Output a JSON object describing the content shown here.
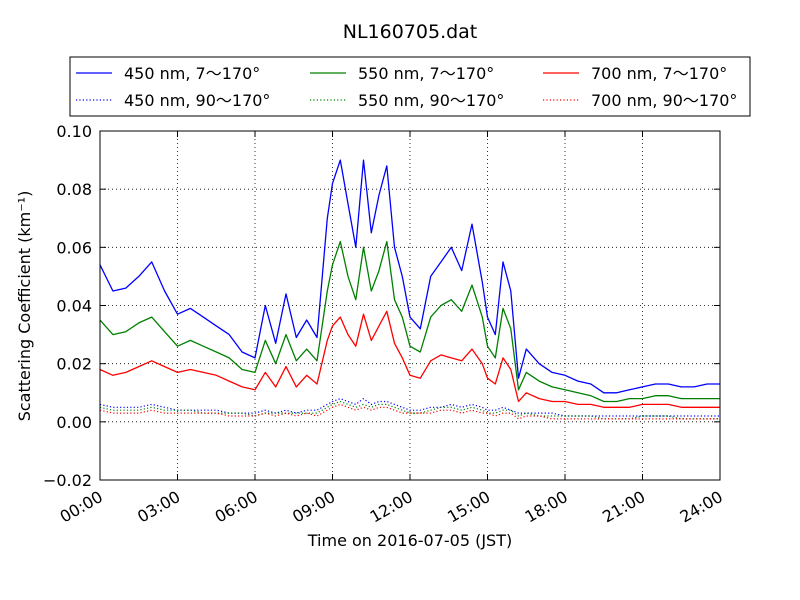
{
  "chart_data": {
    "type": "line",
    "title": "NL160705.dat",
    "xlabel": "Time on 2016-07-05 (JST)",
    "ylabel": "Scattering Coefficient (km⁻¹)",
    "x_unit": "hour",
    "xlim": [
      0,
      24
    ],
    "ylim": [
      -0.02,
      0.1
    ],
    "xticks": [
      0,
      3,
      6,
      9,
      12,
      15,
      18,
      21,
      24
    ],
    "xtick_labels": [
      "00:00",
      "03:00",
      "06:00",
      "09:00",
      "12:00",
      "15:00",
      "18:00",
      "21:00",
      "24:00"
    ],
    "yticks": [
      -0.02,
      0.0,
      0.02,
      0.04,
      0.06,
      0.08,
      0.1
    ],
    "ytick_labels": [
      "−0.02",
      "0.00",
      "0.02",
      "0.04",
      "0.06",
      "0.08",
      "0.10"
    ],
    "grid": true,
    "legend_position": "top, above plot",
    "x": [
      0.0,
      0.5,
      1.0,
      1.5,
      2.0,
      2.5,
      3.0,
      3.5,
      4.0,
      4.5,
      5.0,
      5.5,
      6.0,
      6.4,
      6.8,
      7.2,
      7.6,
      8.0,
      8.4,
      8.8,
      9.0,
      9.3,
      9.6,
      9.9,
      10.2,
      10.5,
      10.8,
      11.1,
      11.4,
      11.7,
      12.0,
      12.4,
      12.8,
      13.2,
      13.6,
      14.0,
      14.4,
      14.8,
      15.0,
      15.3,
      15.6,
      15.9,
      16.2,
      16.5,
      17.0,
      17.5,
      18.0,
      18.5,
      19.0,
      19.5,
      20.0,
      20.5,
      21.0,
      21.5,
      22.0,
      22.5,
      23.0,
      23.5,
      24.0
    ],
    "series": [
      {
        "name": "450 nm, 7～170°",
        "color": "#0000ff",
        "style": "solid",
        "values": [
          0.054,
          0.045,
          0.046,
          0.05,
          0.055,
          0.045,
          0.037,
          0.039,
          0.036,
          0.033,
          0.03,
          0.024,
          0.022,
          0.04,
          0.027,
          0.044,
          0.029,
          0.035,
          0.029,
          0.07,
          0.082,
          0.09,
          0.075,
          0.06,
          0.09,
          0.065,
          0.078,
          0.088,
          0.06,
          0.05,
          0.036,
          0.032,
          0.05,
          0.055,
          0.06,
          0.052,
          0.068,
          0.048,
          0.036,
          0.03,
          0.055,
          0.045,
          0.015,
          0.025,
          0.02,
          0.017,
          0.016,
          0.014,
          0.013,
          0.01,
          0.01,
          0.011,
          0.012,
          0.013,
          0.013,
          0.012,
          0.012,
          0.013,
          0.013
        ]
      },
      {
        "name": "450 nm, 90～170°",
        "color": "#0000ff",
        "style": "dotted",
        "values": [
          0.006,
          0.005,
          0.005,
          0.005,
          0.006,
          0.005,
          0.004,
          0.004,
          0.004,
          0.004,
          0.003,
          0.003,
          0.003,
          0.004,
          0.003,
          0.004,
          0.003,
          0.004,
          0.004,
          0.006,
          0.007,
          0.008,
          0.007,
          0.006,
          0.008,
          0.006,
          0.007,
          0.007,
          0.006,
          0.005,
          0.004,
          0.004,
          0.005,
          0.005,
          0.006,
          0.005,
          0.006,
          0.005,
          0.004,
          0.004,
          0.005,
          0.004,
          0.003,
          0.003,
          0.003,
          0.003,
          0.002,
          0.002,
          0.002,
          0.002,
          0.002,
          0.002,
          0.002,
          0.002,
          0.002,
          0.002,
          0.002,
          0.002,
          0.002
        ]
      },
      {
        "name": "550 nm, 7～170°",
        "color": "#008000",
        "style": "solid",
        "values": [
          0.035,
          0.03,
          0.031,
          0.034,
          0.036,
          0.031,
          0.026,
          0.028,
          0.026,
          0.024,
          0.022,
          0.018,
          0.017,
          0.028,
          0.02,
          0.03,
          0.021,
          0.025,
          0.021,
          0.045,
          0.054,
          0.062,
          0.05,
          0.042,
          0.06,
          0.045,
          0.052,
          0.062,
          0.042,
          0.036,
          0.026,
          0.024,
          0.036,
          0.04,
          0.042,
          0.038,
          0.047,
          0.036,
          0.026,
          0.022,
          0.039,
          0.032,
          0.011,
          0.017,
          0.014,
          0.012,
          0.011,
          0.01,
          0.009,
          0.007,
          0.007,
          0.008,
          0.008,
          0.009,
          0.009,
          0.008,
          0.008,
          0.008,
          0.008
        ]
      },
      {
        "name": "550 nm, 90～170°",
        "color": "#008000",
        "style": "dotted",
        "values": [
          0.005,
          0.004,
          0.004,
          0.004,
          0.005,
          0.004,
          0.004,
          0.004,
          0.003,
          0.003,
          0.003,
          0.003,
          0.002,
          0.003,
          0.003,
          0.003,
          0.003,
          0.003,
          0.003,
          0.005,
          0.006,
          0.007,
          0.006,
          0.005,
          0.006,
          0.005,
          0.006,
          0.006,
          0.005,
          0.004,
          0.003,
          0.003,
          0.004,
          0.005,
          0.005,
          0.004,
          0.005,
          0.004,
          0.003,
          0.003,
          0.004,
          0.004,
          0.002,
          0.003,
          0.002,
          0.002,
          0.002,
          0.002,
          0.002,
          0.001,
          0.001,
          0.001,
          0.002,
          0.002,
          0.002,
          0.001,
          0.001,
          0.001,
          0.001
        ]
      },
      {
        "name": "700 nm, 7～170°",
        "color": "#ff0000",
        "style": "solid",
        "values": [
          0.018,
          0.016,
          0.017,
          0.019,
          0.021,
          0.019,
          0.017,
          0.018,
          0.017,
          0.016,
          0.014,
          0.012,
          0.011,
          0.017,
          0.012,
          0.019,
          0.012,
          0.016,
          0.013,
          0.028,
          0.033,
          0.036,
          0.03,
          0.026,
          0.037,
          0.028,
          0.033,
          0.038,
          0.027,
          0.022,
          0.016,
          0.015,
          0.021,
          0.023,
          0.022,
          0.021,
          0.025,
          0.02,
          0.015,
          0.013,
          0.022,
          0.018,
          0.007,
          0.01,
          0.008,
          0.007,
          0.007,
          0.006,
          0.006,
          0.005,
          0.005,
          0.005,
          0.006,
          0.006,
          0.006,
          0.005,
          0.005,
          0.005,
          0.005
        ]
      },
      {
        "name": "700 nm, 90～170°",
        "color": "#ff0000",
        "style": "dotted",
        "values": [
          0.004,
          0.003,
          0.003,
          0.003,
          0.004,
          0.003,
          0.003,
          0.003,
          0.003,
          0.003,
          0.002,
          0.002,
          0.002,
          0.003,
          0.002,
          0.003,
          0.002,
          0.003,
          0.002,
          0.004,
          0.005,
          0.006,
          0.005,
          0.004,
          0.005,
          0.004,
          0.005,
          0.005,
          0.004,
          0.003,
          0.003,
          0.003,
          0.003,
          0.004,
          0.004,
          0.003,
          0.004,
          0.003,
          0.003,
          0.002,
          0.003,
          0.003,
          0.001,
          0.002,
          0.002,
          0.001,
          0.001,
          0.001,
          0.001,
          0.001,
          0.001,
          0.001,
          0.001,
          0.001,
          0.001,
          0.001,
          0.001,
          0.001,
          0.001
        ]
      }
    ]
  }
}
